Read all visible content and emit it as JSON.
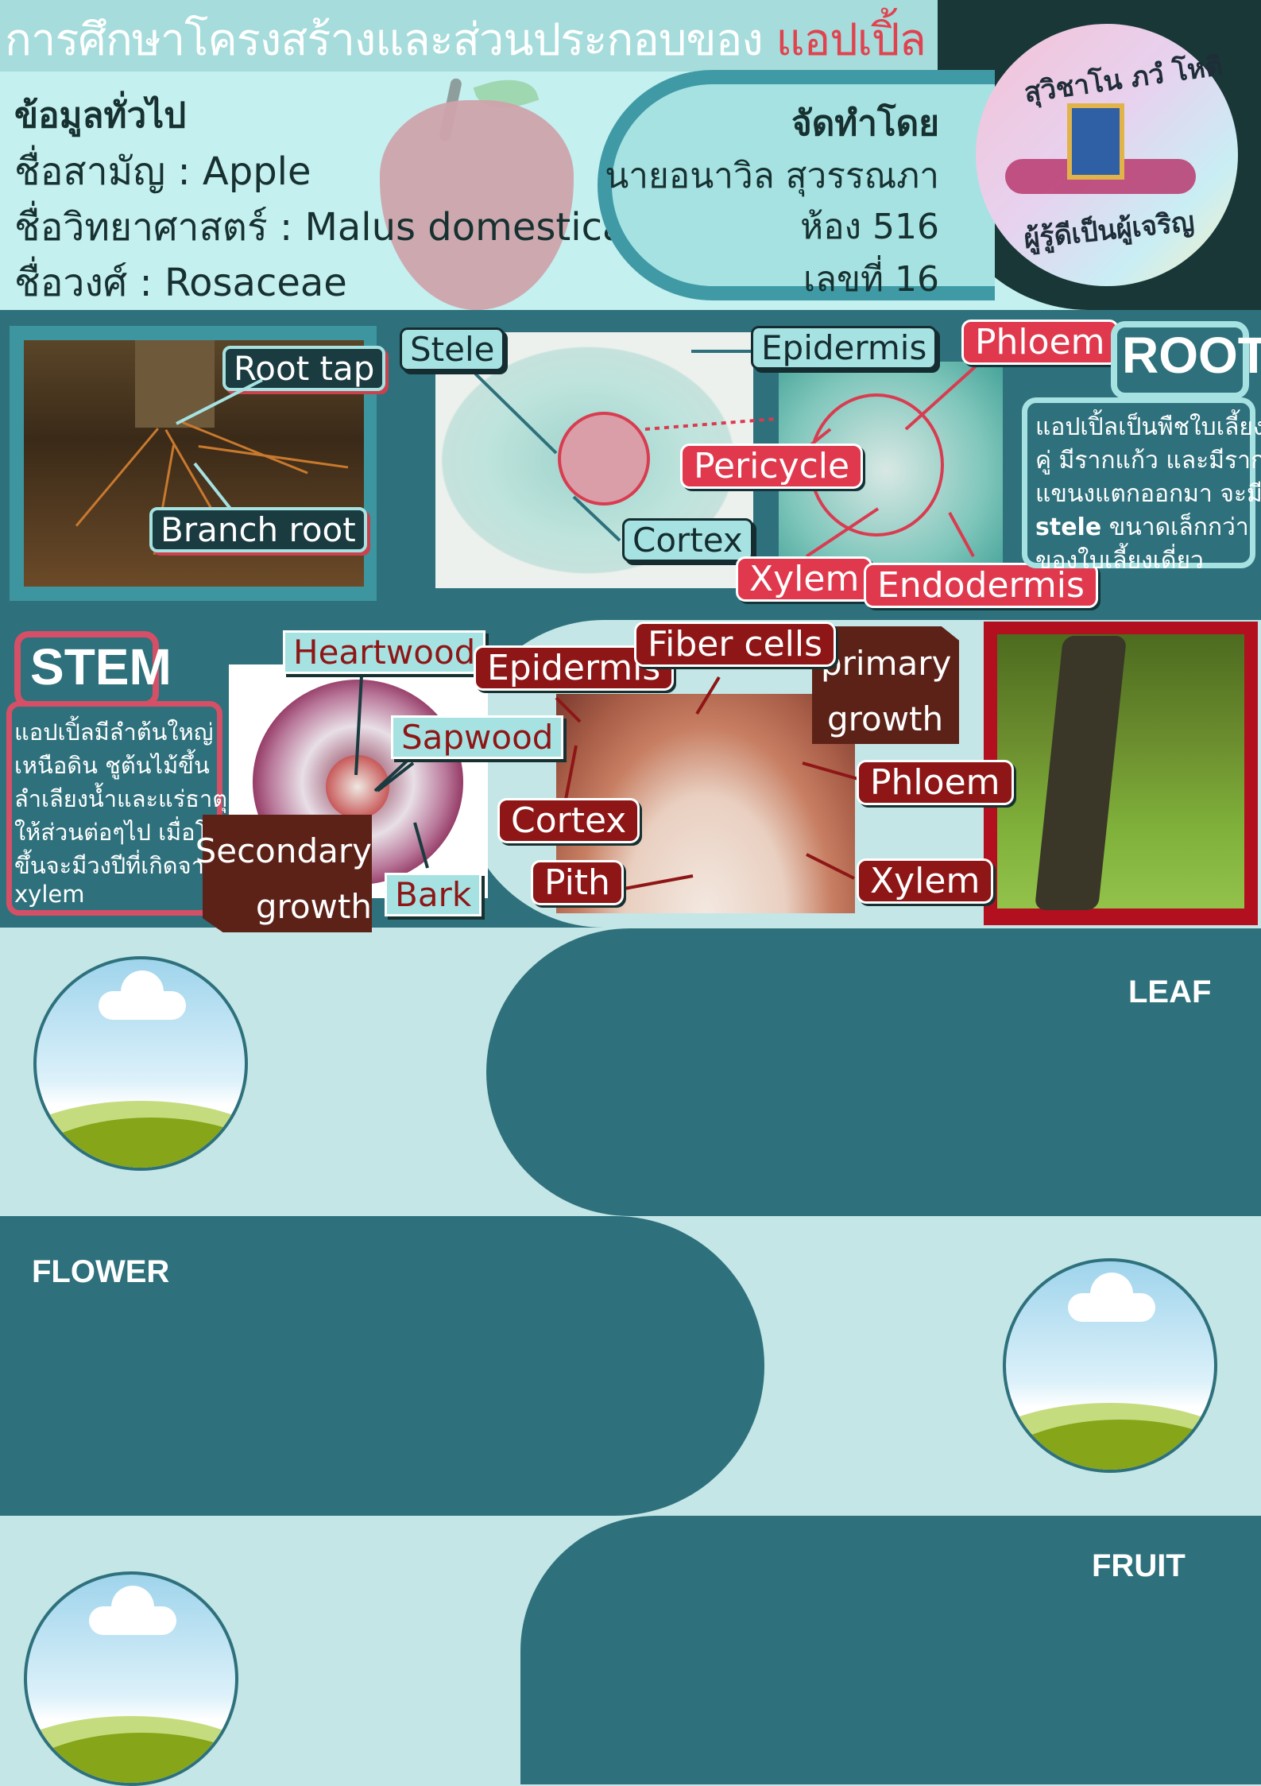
{
  "header": {
    "title": "การศึกษาโครงสร้างและส่วนประกอบของ",
    "title_highlight": "แอปเปิ้ล",
    "general_heading": "ข้อมูลทั่วไป",
    "common_name": "ชื่อสามัญ : Apple",
    "scientific_name": "ชื่อวิทยาศาสตร์ : Malus domestica",
    "family": "ชื่อวงศ์ : Rosaceae",
    "credit_heading": "จัดทำโดย",
    "author": "นายอนาวิล สุวรรณภา",
    "room": "ห้อง 516",
    "number": "เลขที่ 16"
  },
  "seal": {
    "top_text": "สุวิชาโน ภวํ โหติ",
    "bottom_text": "ผู้รู้ดีเป็นผู้เจริญ"
  },
  "root": {
    "heading": "ROOT",
    "labels": {
      "root_tap": "Root tap",
      "branch_root": "Branch root",
      "stele": "Stele",
      "epidermis": "Epidermis",
      "phloem": "Phloem",
      "pericycle": "Pericycle",
      "cortex": "Cortex",
      "xylem": "Xylem",
      "endodermis": "Endodermis"
    },
    "description": {
      "line1": "แอปเปิ้ลเป็นพืชใบเลี้ยง",
      "line2": "คู่ มีรากแก้ว และมีราก",
      "line3": "แขนงแตกออกมา จะมี",
      "line4_bold": "stele",
      "line4_rest": " ขนาดเล็กกว่า",
      "line5": "ของใบเลี้ยงเดี่ยว"
    }
  },
  "stem": {
    "heading": "STEM",
    "labels": {
      "heartwood": "Heartwood",
      "sapwood": "Sapwood",
      "bark": "Bark",
      "secondary_1": "Secondary",
      "secondary_2": "growth",
      "epidermis": "Epidermis",
      "fiber_cells": "Fiber cells",
      "primary_1": "primary",
      "primary_2": "growth",
      "cortex": "Cortex",
      "pith": "Pith",
      "phloem": "Phloem",
      "xylem": "Xylem"
    },
    "description": {
      "line1": "แอปเปิ้ลมีลำต้นใหญ่",
      "line2": "เหนือดิน ชูต้นไม้ขึ้น",
      "line3": "ลำเลียงน้ำและแร่ธาตุ",
      "line4": "ให้ส่วนต่อๆไป เมื่อโต",
      "line5": "ขึ้นจะมีวงปีที่เกิดจาก",
      "line6": "xylem"
    }
  },
  "sections": {
    "leaf": "LEAF",
    "flower": "FLOWER",
    "fruit": "FRUIT"
  },
  "colors": {
    "teal_dark": "#2e717c",
    "teal_light": "#c4e6e6",
    "accent_red": "#e0394e",
    "maroon": "#8e1616"
  }
}
